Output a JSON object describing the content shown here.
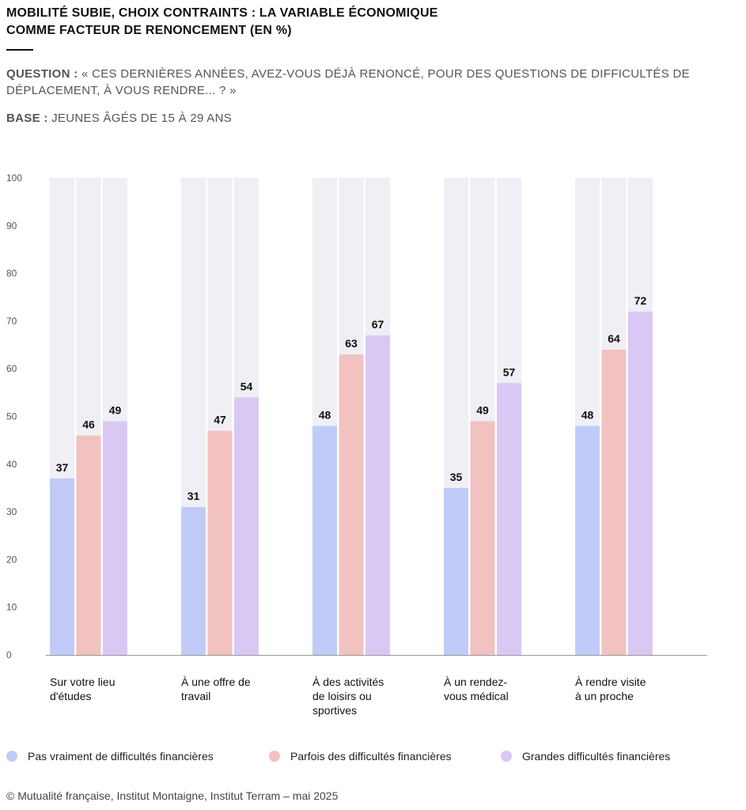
{
  "title_line1": "MOBILITÉ SUBIE, CHOIX CONTRAINTS : LA VARIABLE ÉCONOMIQUE",
  "title_line2": "COMME FACTEUR DE RENONCEMENT (EN %)",
  "question_label": "QUESTION :",
  "question_text": "« CES DERNIÈRES ANNÉES, AVEZ-VOUS DÉJÀ RENONCÉ, POUR DES QUESTIONS DE DIFFICULTÉS DE DÉPLACEMENT, À VOUS RENDRE... ? »",
  "base_label": "BASE :",
  "base_text": "JEUNES ÂGÉS DE 15 À 29 ANS",
  "source": "© Mutualité française, Institut Montaigne, Institut Terram – mai 2025",
  "colors": {
    "series1": "#c0ccf7",
    "series2": "#f1c2c0",
    "series3": "#d9c8f4",
    "track": "#efeff5",
    "axis": "#999999"
  },
  "chart_data": {
    "type": "bar",
    "categories": [
      "Sur votre lieu d'études",
      "À une offre de travail",
      "À des activités de loisirs ou sportives",
      "À un rendez-vous médical",
      "À rendre visite à un proche"
    ],
    "category_lines": [
      [
        "Sur votre lieu",
        "d'études"
      ],
      [
        "À une offre de",
        "travail"
      ],
      [
        "À des activités",
        "de loisirs ou",
        "sportives"
      ],
      [
        "À un rendez-",
        "vous médical"
      ],
      [
        "À rendre visite",
        "à un proche"
      ]
    ],
    "series": [
      {
        "name": "Pas vraiment de difficultés financières",
        "values": [
          37,
          31,
          48,
          35,
          48
        ]
      },
      {
        "name": "Parfois des difficultés financières",
        "values": [
          46,
          47,
          63,
          49,
          64
        ]
      },
      {
        "name": "Grandes difficultés financières",
        "values": [
          49,
          54,
          67,
          57,
          72
        ]
      }
    ],
    "yticks": [
      "0",
      "10",
      "20",
      "30",
      "40",
      "50",
      "60",
      "70",
      "80",
      "90",
      "100"
    ],
    "ylim": [
      0,
      100
    ],
    "grid": false,
    "legend": "bottom"
  }
}
